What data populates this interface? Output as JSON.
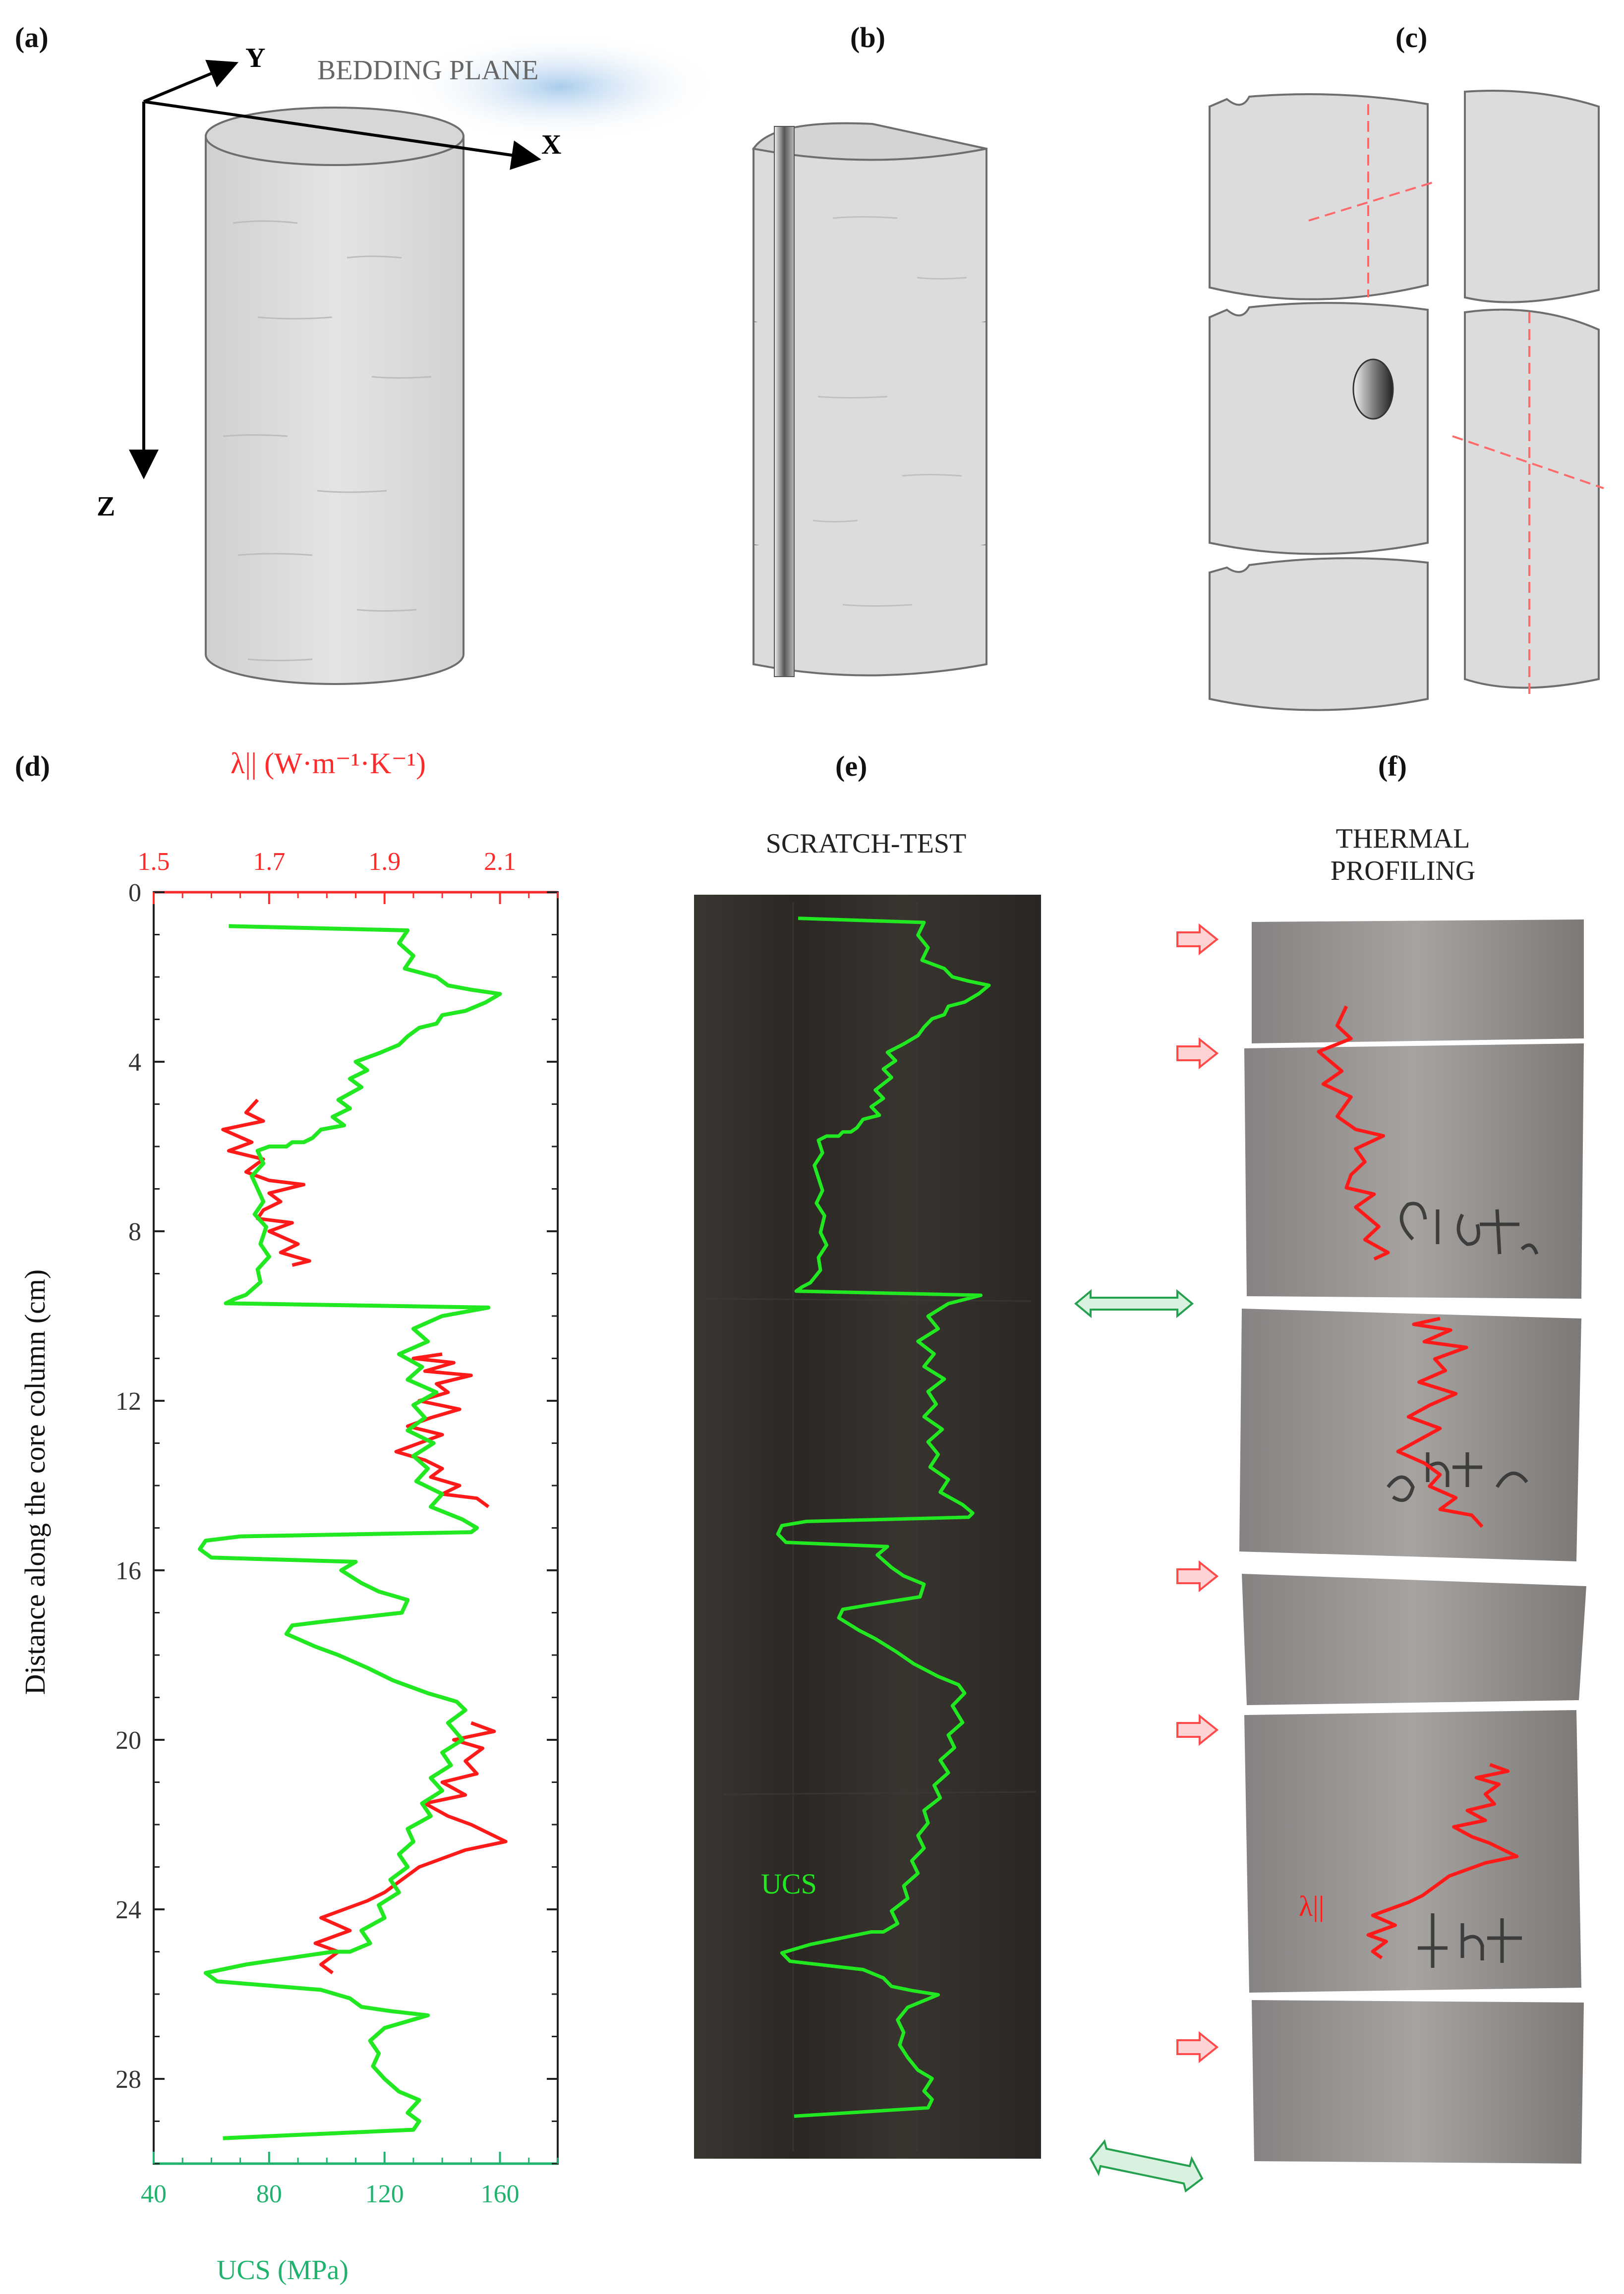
{
  "panels": {
    "a": {
      "label": "(a)",
      "axis_y": "Y",
      "axis_x": "X",
      "axis_z": "Z",
      "bedding_plane": "BEDDING PLANE"
    },
    "b": {
      "label": "(b)"
    },
    "c": {
      "label": "(c)"
    },
    "d": {
      "label": "(d)"
    },
    "e": {
      "label": "(e)",
      "title": "SCRATCH-TEST",
      "ucs_label": "UCS"
    },
    "f": {
      "label": "(f)",
      "title_line1": "THERMAL",
      "title_line2": "PROFILING",
      "lambda_label": "λ||"
    }
  },
  "colors": {
    "ucs": "#22e822",
    "conductivity": "#ff1a1a",
    "ucs_axis": "#1fb36e",
    "cond_axis": "#ff2b2b",
    "core_fill": "#e1e1e1",
    "scratch_bg": "#2f2b27",
    "photo_bg": "#6e6b68"
  },
  "chart_data": {
    "type": "line",
    "ylabel": "Distance along the core column (cm)",
    "x_bottom_label": "UCS (MPa)",
    "x_top_label": "λ|| (W·m⁻¹·K⁻¹)",
    "ylim": [
      0,
      30
    ],
    "y_ticks": [
      0,
      4,
      8,
      12,
      16,
      20,
      24,
      28
    ],
    "x_bottom_ticks": [
      40,
      80,
      120,
      160
    ],
    "x_bottom_lim": [
      40,
      180
    ],
    "x_top_ticks": [
      1.5,
      1.7,
      1.9,
      2.1
    ],
    "x_top_lim": [
      1.5,
      2.2
    ],
    "series": [
      {
        "name": "UCS",
        "axis": "bottom",
        "points": [
          [
            66,
            0.8
          ],
          [
            128,
            0.9
          ],
          [
            125,
            1.2
          ],
          [
            130,
            1.5
          ],
          [
            127,
            1.8
          ],
          [
            138,
            2.0
          ],
          [
            142,
            2.2
          ],
          [
            150,
            2.3
          ],
          [
            160,
            2.4
          ],
          [
            155,
            2.6
          ],
          [
            148,
            2.8
          ],
          [
            140,
            2.9
          ],
          [
            138,
            3.1
          ],
          [
            132,
            3.2
          ],
          [
            128,
            3.4
          ],
          [
            125,
            3.6
          ],
          [
            118,
            3.8
          ],
          [
            110,
            4.0
          ],
          [
            114,
            4.2
          ],
          [
            108,
            4.4
          ],
          [
            112,
            4.6
          ],
          [
            104,
            4.9
          ],
          [
            108,
            5.1
          ],
          [
            102,
            5.3
          ],
          [
            106,
            5.5
          ],
          [
            98,
            5.6
          ],
          [
            95,
            5.8
          ],
          [
            92,
            5.9
          ],
          [
            88,
            5.9
          ],
          [
            86,
            6.0
          ],
          [
            80,
            6.0
          ],
          [
            76,
            6.1
          ],
          [
            78,
            6.4
          ],
          [
            74,
            6.7
          ],
          [
            76,
            7.0
          ],
          [
            78,
            7.3
          ],
          [
            75,
            7.6
          ],
          [
            79,
            7.9
          ],
          [
            77,
            8.3
          ],
          [
            80,
            8.6
          ],
          [
            76,
            8.9
          ],
          [
            77,
            9.2
          ],
          [
            72,
            9.5
          ],
          [
            68,
            9.6
          ],
          [
            65,
            9.7
          ],
          [
            156,
            9.8
          ],
          [
            140,
            10.0
          ],
          [
            130,
            10.3
          ],
          [
            135,
            10.6
          ],
          [
            125,
            10.9
          ],
          [
            133,
            11.2
          ],
          [
            128,
            11.5
          ],
          [
            138,
            11.8
          ],
          [
            130,
            12.1
          ],
          [
            134,
            12.4
          ],
          [
            128,
            12.7
          ],
          [
            137,
            13.0
          ],
          [
            130,
            13.3
          ],
          [
            135,
            13.6
          ],
          [
            131,
            13.9
          ],
          [
            140,
            14.2
          ],
          [
            136,
            14.5
          ],
          [
            147,
            14.8
          ],
          [
            152,
            15.0
          ],
          [
            150,
            15.1
          ],
          [
            70,
            15.2
          ],
          [
            58,
            15.3
          ],
          [
            56,
            15.5
          ],
          [
            60,
            15.7
          ],
          [
            110,
            15.8
          ],
          [
            105,
            16.0
          ],
          [
            112,
            16.3
          ],
          [
            118,
            16.5
          ],
          [
            128,
            16.7
          ],
          [
            126,
            17.0
          ],
          [
            100,
            17.2
          ],
          [
            88,
            17.3
          ],
          [
            86,
            17.5
          ],
          [
            96,
            17.8
          ],
          [
            104,
            18.0
          ],
          [
            114,
            18.3
          ],
          [
            123,
            18.6
          ],
          [
            135,
            18.9
          ],
          [
            145,
            19.1
          ],
          [
            148,
            19.3
          ],
          [
            142,
            19.6
          ],
          [
            147,
            20.0
          ],
          [
            140,
            20.3
          ],
          [
            143,
            20.6
          ],
          [
            136,
            20.9
          ],
          [
            140,
            21.2
          ],
          [
            133,
            21.5
          ],
          [
            136,
            21.8
          ],
          [
            128,
            22.1
          ],
          [
            130,
            22.4
          ],
          [
            125,
            22.7
          ],
          [
            128,
            23.0
          ],
          [
            122,
            23.3
          ],
          [
            125,
            23.6
          ],
          [
            118,
            23.9
          ],
          [
            120,
            24.2
          ],
          [
            112,
            24.5
          ],
          [
            115,
            24.8
          ],
          [
            108,
            25.0
          ],
          [
            102,
            25.0
          ],
          [
            72,
            25.3
          ],
          [
            58,
            25.5
          ],
          [
            62,
            25.7
          ],
          [
            80,
            25.8
          ],
          [
            98,
            25.9
          ],
          [
            108,
            26.1
          ],
          [
            112,
            26.3
          ],
          [
            122,
            26.4
          ],
          [
            135,
            26.5
          ],
          [
            120,
            26.8
          ],
          [
            115,
            27.1
          ],
          [
            118,
            27.4
          ],
          [
            116,
            27.7
          ],
          [
            120,
            28.0
          ],
          [
            125,
            28.3
          ],
          [
            132,
            28.5
          ],
          [
            128,
            28.8
          ],
          [
            132,
            29.0
          ],
          [
            130,
            29.2
          ],
          [
            64,
            29.4
          ]
        ]
      },
      {
        "name": "λ||",
        "axis": "top",
        "points": [
          [
            1.68,
            4.9
          ],
          [
            1.66,
            5.2
          ],
          [
            1.69,
            5.4
          ],
          [
            1.62,
            5.6
          ],
          [
            1.67,
            5.9
          ],
          [
            1.63,
            6.1
          ],
          [
            1.69,
            6.3
          ],
          [
            1.66,
            6.6
          ],
          [
            1.7,
            6.8
          ],
          [
            1.76,
            6.9
          ],
          [
            1.7,
            7.1
          ],
          [
            1.72,
            7.3
          ],
          [
            1.69,
            7.5
          ],
          [
            1.68,
            7.7
          ],
          [
            1.74,
            7.8
          ],
          [
            1.7,
            8.0
          ],
          [
            1.75,
            8.3
          ],
          [
            1.72,
            8.5
          ],
          [
            1.77,
            8.7
          ],
          [
            1.74,
            8.8
          ],
          [
            2.0,
            10.9
          ],
          [
            1.95,
            11.0
          ],
          [
            2.02,
            11.1
          ],
          [
            1.97,
            11.3
          ],
          [
            2.05,
            11.4
          ],
          [
            1.99,
            11.6
          ],
          [
            2.01,
            11.8
          ],
          [
            1.96,
            12.0
          ],
          [
            2.03,
            12.2
          ],
          [
            1.98,
            12.4
          ],
          [
            1.94,
            12.6
          ],
          [
            2.0,
            12.8
          ],
          [
            1.96,
            13.0
          ],
          [
            1.92,
            13.2
          ],
          [
            1.97,
            13.4
          ],
          [
            2.0,
            13.6
          ],
          [
            1.98,
            13.8
          ],
          [
            2.03,
            14.0
          ],
          [
            2.0,
            14.2
          ],
          [
            2.06,
            14.3
          ],
          [
            2.08,
            14.5
          ],
          [
            2.05,
            19.6
          ],
          [
            2.09,
            19.8
          ],
          [
            2.02,
            20.0
          ],
          [
            2.07,
            20.2
          ],
          [
            2.04,
            20.5
          ],
          [
            2.06,
            20.8
          ],
          [
            2.0,
            21.0
          ],
          [
            2.04,
            21.3
          ],
          [
            1.97,
            21.5
          ],
          [
            2.01,
            21.8
          ],
          [
            2.05,
            22.0
          ],
          [
            2.08,
            22.2
          ],
          [
            2.11,
            22.4
          ],
          [
            2.04,
            22.6
          ],
          [
            2.0,
            22.8
          ],
          [
            1.96,
            23.0
          ],
          [
            1.93,
            23.3
          ],
          [
            1.9,
            23.6
          ],
          [
            1.87,
            23.8
          ],
          [
            1.83,
            24.0
          ],
          [
            1.79,
            24.2
          ],
          [
            1.84,
            24.5
          ],
          [
            1.78,
            24.8
          ],
          [
            1.82,
            25.0
          ],
          [
            1.79,
            25.3
          ],
          [
            1.81,
            25.5
          ]
        ]
      }
    ]
  }
}
